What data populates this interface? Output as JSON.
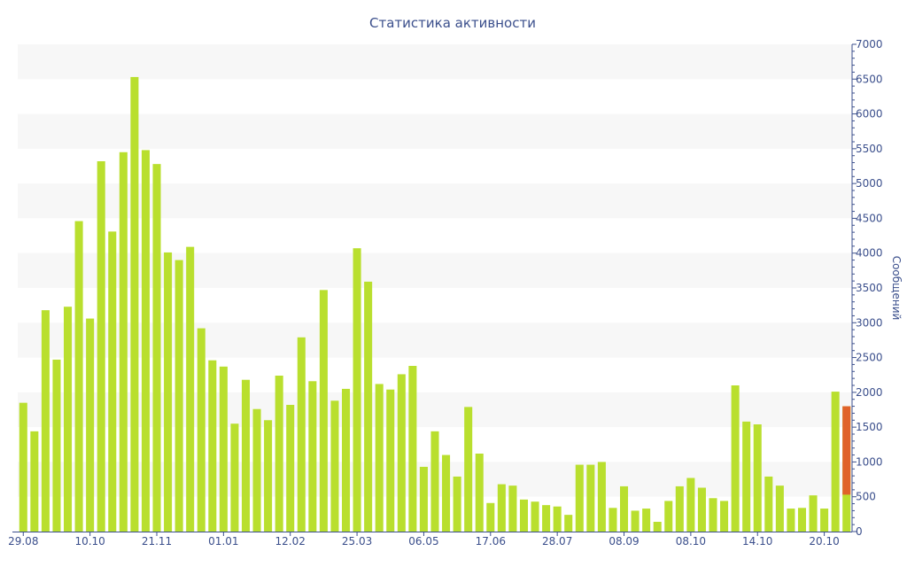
{
  "chart_data": {
    "type": "bar",
    "title": "Статистика активности",
    "xlabel": "",
    "ylabel": "Сообщений",
    "ylim": [
      0,
      7000
    ],
    "y_axis_position": "right",
    "yticks": [
      0,
      500,
      1000,
      1500,
      2000,
      2500,
      3000,
      3500,
      4000,
      4500,
      5000,
      5500,
      6000,
      6500,
      7000
    ],
    "x_tick_labels": [
      {
        "index": 0,
        "label": "29.08"
      },
      {
        "index": 6,
        "label": "10.10"
      },
      {
        "index": 12,
        "label": "21.11"
      },
      {
        "index": 18,
        "label": "01.01"
      },
      {
        "index": 24,
        "label": "12.02"
      },
      {
        "index": 30,
        "label": "25.03"
      },
      {
        "index": 36,
        "label": "06.05"
      },
      {
        "index": 42,
        "label": "17.06"
      },
      {
        "index": 48,
        "label": "28.07"
      },
      {
        "index": 54,
        "label": "08.09"
      },
      {
        "index": 60,
        "label": "08.10"
      },
      {
        "index": 66,
        "label": "14.10"
      },
      {
        "index": 72,
        "label": "20.10"
      }
    ],
    "grid": "alternating horizontal bands",
    "colors": {
      "bar": "#b9df2e",
      "highlight": "#e0622a",
      "band": "#f7f7f7",
      "axis": "#3b4f8c"
    },
    "series": [
      {
        "values": [
          1850,
          1440,
          3180,
          2470,
          3230,
          4460,
          3060,
          5320,
          4310,
          5450,
          6530,
          5480,
          5280,
          4010,
          3900,
          4090,
          2920,
          2460,
          2370,
          1550,
          2180,
          1760,
          1600,
          2240,
          1820,
          2790,
          2160,
          3470,
          1880,
          2050,
          4070,
          3590,
          2120,
          2040,
          2260,
          2380,
          930,
          1440,
          1100,
          790,
          1790,
          1120,
          410,
          680,
          660,
          460,
          430,
          380,
          360,
          240,
          960,
          960,
          1000,
          340,
          650,
          300,
          330,
          140,
          440,
          650,
          770,
          630,
          480,
          440,
          2100,
          1580,
          1540,
          790,
          660,
          330,
          340,
          520,
          330,
          2010,
          1800
        ]
      }
    ],
    "highlight": {
      "index": 74,
      "from": 530,
      "to": 1800
    }
  }
}
